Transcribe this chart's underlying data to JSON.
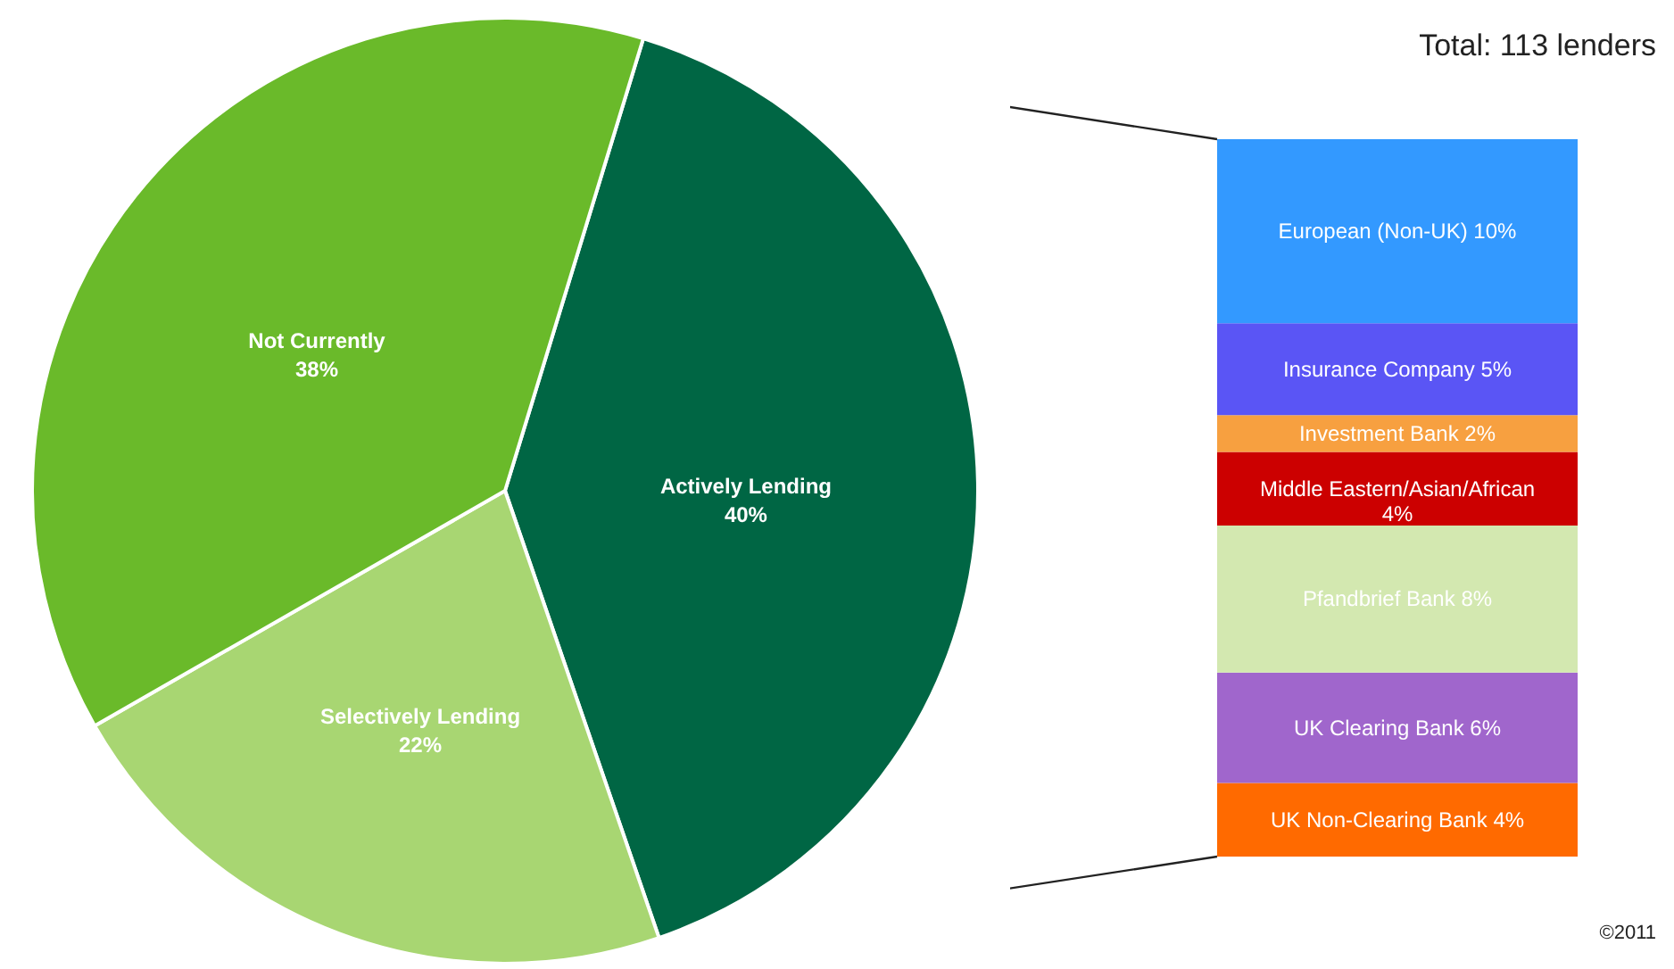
{
  "chart_data": [
    {
      "type": "pie",
      "categories": [
        "Actively Lending",
        "Selectively Lending",
        "Not Currently"
      ],
      "values": [
        40,
        22,
        38
      ],
      "value_labels": [
        "40%",
        "22%",
        "38%"
      ],
      "colors": [
        "#006644",
        "#a8d672",
        "#6aba2a"
      ]
    },
    {
      "type": "bar",
      "stacked": true,
      "categories": [
        null
      ],
      "annotations": [
        "Total: 113 lenders",
        "©2011"
      ],
      "series": [
        {
          "name": "UK Non-Clearing Bank",
          "color": "#ff6a00",
          "values": [
            4
          ],
          "value_labels": [
            "4%"
          ]
        },
        {
          "name": "UK Clearing Bank",
          "color": "#a066cc",
          "values": [
            6
          ],
          "value_labels": [
            "6%"
          ]
        },
        {
          "name": "Pfandbrief Bank",
          "color": "#d3e8b0",
          "values": [
            8
          ],
          "value_labels": [
            "8%"
          ]
        },
        {
          "name": "Middle Eastern/Asian/African",
          "color": "#cc0000",
          "values": [
            4
          ],
          "value_labels": [
            "4%"
          ]
        },
        {
          "name": "Investment Bank",
          "color": "#f7a040",
          "values": [
            2
          ],
          "value_labels": [
            "2%"
          ]
        },
        {
          "name": "Insurance Company",
          "color": "#5a55f5",
          "values": [
            5
          ],
          "value_labels": [
            "5%"
          ]
        },
        {
          "name": "European (Non-UK)",
          "color": "#3399ff",
          "values": [
            10
          ],
          "value_labels": [
            "10%"
          ]
        }
      ]
    }
  ]
}
